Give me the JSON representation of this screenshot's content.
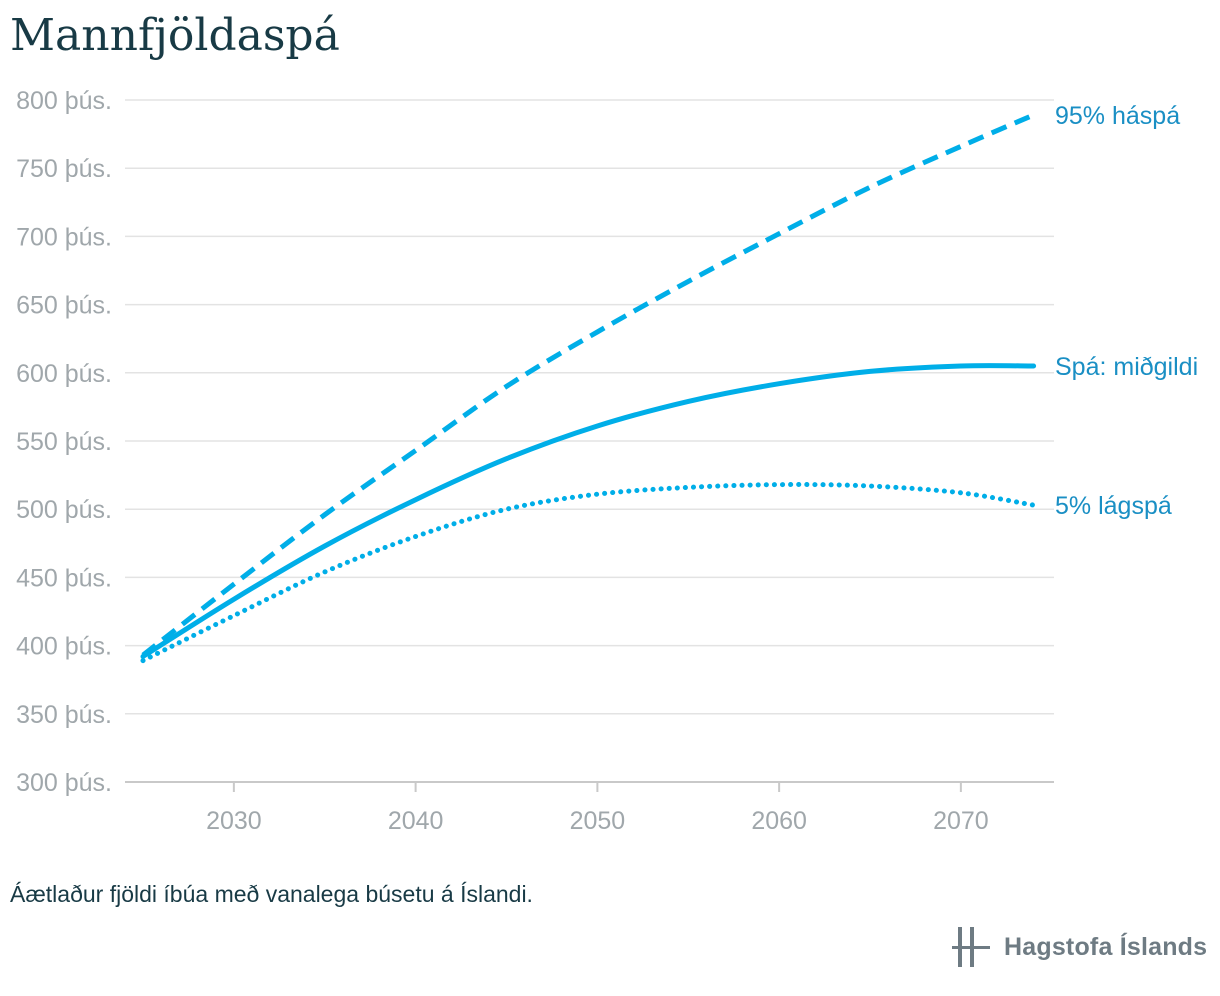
{
  "title": "Mannfjöldaspá",
  "caption": "Áætlaður fjöldi íbúa með vanalega búsetu á Íslandi.",
  "logo": {
    "text": "Hagstofa Íslands",
    "icon": "hagstofa-logo-icon"
  },
  "colors": {
    "series": "#00aee8",
    "label": "#1a8fc4",
    "grid": "#e3e3e3",
    "axis": "#c9c9c9",
    "tick_text": "#a0a7ab",
    "title": "#183a45"
  },
  "chart_data": {
    "type": "line",
    "title": "Mannfjöldaspá",
    "xlabel": "",
    "ylabel": "",
    "xlim": [
      2025,
      2074
    ],
    "ylim": [
      300000,
      800000
    ],
    "grid": true,
    "x_ticks": [
      2030,
      2040,
      2050,
      2060,
      2070
    ],
    "y_ticks": [
      {
        "value": 300000,
        "label": "300 þús."
      },
      {
        "value": 350000,
        "label": "350 þús."
      },
      {
        "value": 400000,
        "label": "400 þús."
      },
      {
        "value": 450000,
        "label": "450 þús."
      },
      {
        "value": 500000,
        "label": "500 þús."
      },
      {
        "value": 550000,
        "label": "550 þús."
      },
      {
        "value": 600000,
        "label": "600 þús."
      },
      {
        "value": 650000,
        "label": "650 þús."
      },
      {
        "value": 700000,
        "label": "700 þús."
      },
      {
        "value": 750000,
        "label": "750 þús."
      },
      {
        "value": 800000,
        "label": "800 þús."
      }
    ],
    "x": [
      2025,
      2030,
      2035,
      2040,
      2045,
      2050,
      2055,
      2060,
      2065,
      2070,
      2074
    ],
    "series": [
      {
        "name": "95% háspá",
        "style": "dashed",
        "values": [
          393000,
          445000,
          496000,
          543000,
          590000,
          630000,
          667000,
          702000,
          736000,
          766000,
          789000
        ]
      },
      {
        "name": "Spá: miðgildi",
        "style": "solid",
        "values": [
          392000,
          434000,
          473000,
          507000,
          537000,
          561000,
          579000,
          592000,
          601000,
          605000,
          605000
        ]
      },
      {
        "name": "5% lágspá",
        "style": "dotted",
        "values": [
          389000,
          422000,
          454000,
          480000,
          500000,
          511000,
          516000,
          518000,
          517000,
          512000,
          503000
        ]
      }
    ]
  }
}
